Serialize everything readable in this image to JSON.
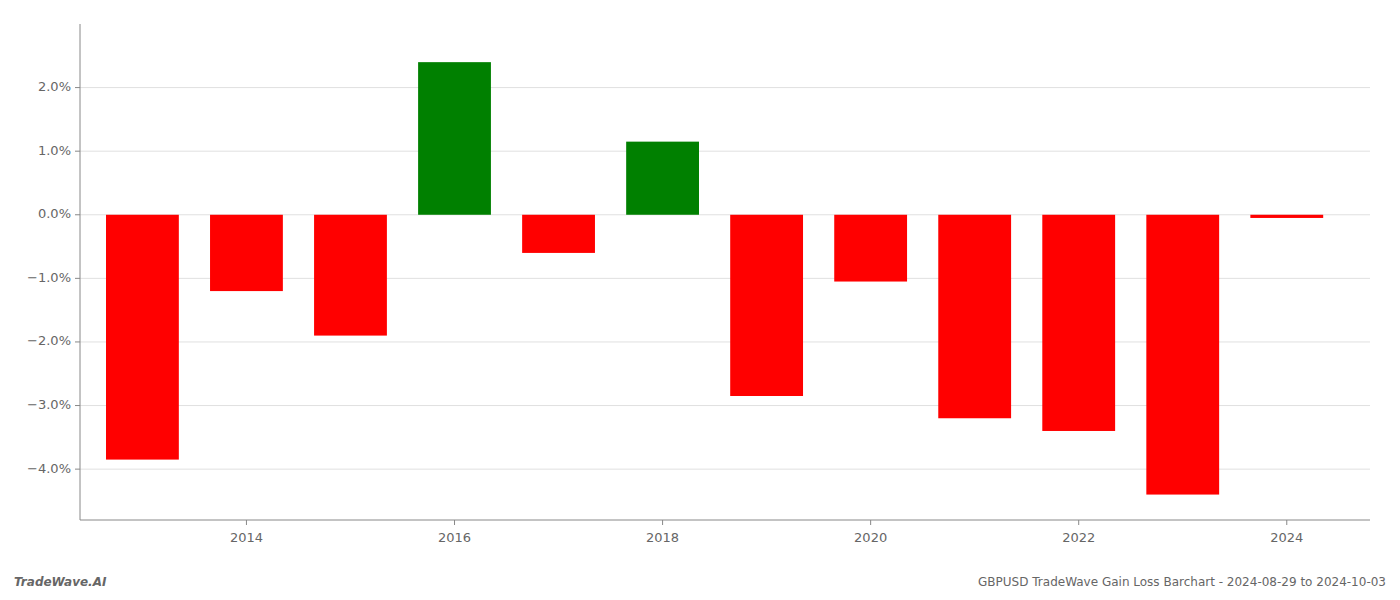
{
  "chart_data": {
    "type": "bar",
    "x": [
      2013,
      2014,
      2015,
      2016,
      2017,
      2018,
      2019,
      2020,
      2021,
      2022,
      2023,
      2024
    ],
    "values": [
      -3.85,
      -1.2,
      -1.9,
      2.4,
      -0.6,
      1.15,
      -2.85,
      -1.05,
      -3.2,
      -3.4,
      -4.4,
      -0.05
    ],
    "colors": [
      "#ff0000",
      "#ff0000",
      "#ff0000",
      "#008000",
      "#ff0000",
      "#008000",
      "#ff0000",
      "#ff0000",
      "#ff0000",
      "#ff0000",
      "#ff0000",
      "#ff0000"
    ],
    "xlim": [
      2012.4,
      2024.8
    ],
    "xticks": [
      2014,
      2016,
      2018,
      2020,
      2022,
      2024
    ],
    "ylim": [
      -4.8,
      3.0
    ],
    "yticks": [
      {
        "value": -4.0,
        "label": "−4.0%"
      },
      {
        "value": -3.0,
        "label": "−3.0%"
      },
      {
        "value": -2.0,
        "label": "−2.0%"
      },
      {
        "value": -1.0,
        "label": "−1.0%"
      },
      {
        "value": 0.0,
        "label": "0.0%"
      },
      {
        "value": 1.0,
        "label": "1.0%"
      },
      {
        "value": 2.0,
        "label": "2.0%"
      }
    ],
    "grid": true,
    "annotations": [
      "TradeWave.AI",
      "GBPUSD TradeWave Gain Loss Barchart - 2024-08-29 to 2024-10-03"
    ]
  }
}
